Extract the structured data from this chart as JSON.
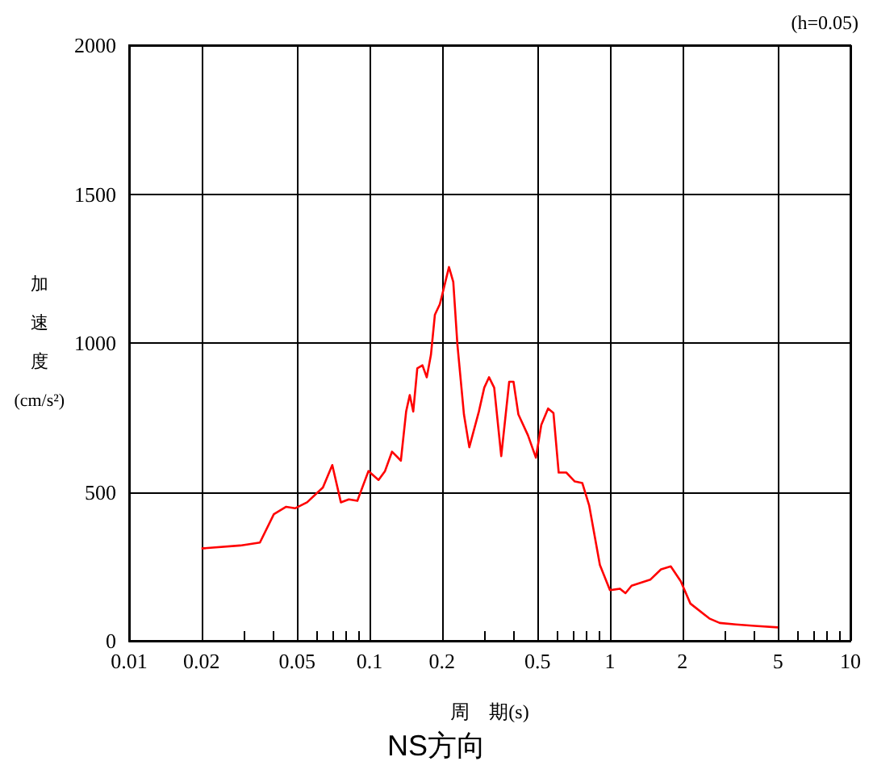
{
  "chart_data": {
    "type": "line",
    "title": "NS方向",
    "xlabel": "周　期(s)",
    "ylabel": "加速度(cm/s²)",
    "annotations": [
      "(h=0.05)"
    ],
    "log": "x",
    "grid": true,
    "marker": "none",
    "line_style": "solid",
    "xlim": [
      0.01,
      10
    ],
    "ylim": [
      0,
      2000
    ],
    "xticks": [
      0.01,
      0.02,
      {
        "value": 0.03,
        "label": null
      },
      {
        "value": 0.04,
        "label": null
      },
      0.05,
      {
        "value": 0.06,
        "label": null
      },
      {
        "value": 0.07,
        "label": null
      },
      {
        "value": 0.08,
        "label": null
      },
      {
        "value": 0.09,
        "label": null
      },
      0.1,
      0.2,
      {
        "value": 0.3,
        "label": null
      },
      {
        "value": 0.4,
        "label": null
      },
      0.5,
      {
        "value": 0.6,
        "label": null
      },
      {
        "value": 0.7,
        "label": null
      },
      {
        "value": 0.8,
        "label": null
      },
      {
        "value": 0.9,
        "label": null
      },
      1,
      2,
      {
        "value": 3,
        "label": null
      },
      {
        "value": 4,
        "label": null
      },
      5,
      {
        "value": 6,
        "label": null
      },
      {
        "value": 7,
        "label": null
      },
      {
        "value": 8,
        "label": null
      },
      {
        "value": 9,
        "label": null
      },
      10
    ],
    "yticks": [
      0,
      500,
      1000,
      1500,
      2000
    ],
    "series": [
      {
        "color": "#ff0000",
        "x": [
          0.02,
          0.029,
          0.035,
          0.04,
          0.045,
          0.049,
          0.055,
          0.064,
          0.07,
          0.076,
          0.082,
          0.089,
          0.099,
          0.109,
          0.116,
          0.124,
          0.135,
          0.142,
          0.147,
          0.152,
          0.158,
          0.166,
          0.173,
          0.18,
          0.187,
          0.196,
          0.201,
          0.214,
          0.223,
          0.232,
          0.247,
          0.26,
          0.285,
          0.3,
          0.314,
          0.33,
          0.353,
          0.381,
          0.397,
          0.416,
          0.456,
          0.492,
          0.518,
          0.553,
          0.582,
          0.612,
          0.658,
          0.714,
          0.767,
          0.819,
          0.908,
          1.0,
          1.1,
          1.16,
          1.23,
          1.47,
          1.63,
          1.79,
          1.97,
          2.16,
          2.59,
          2.86,
          3.34,
          4.0,
          5.0
        ],
        "values": [
          310,
          320,
          330,
          425,
          450,
          445,
          465,
          515,
          590,
          465,
          475,
          470,
          570,
          540,
          570,
          635,
          605,
          770,
          825,
          770,
          915,
          925,
          885,
          960,
          1095,
          1130,
          1165,
          1255,
          1205,
          995,
          760,
          650,
          770,
          850,
          885,
          850,
          620,
          870,
          870,
          760,
          690,
          615,
          725,
          780,
          765,
          565,
          565,
          535,
          530,
          455,
          255,
          170,
          175,
          160,
          185,
          205,
          240,
          250,
          200,
          125,
          75,
          60,
          55,
          50,
          45
        ]
      }
    ]
  }
}
